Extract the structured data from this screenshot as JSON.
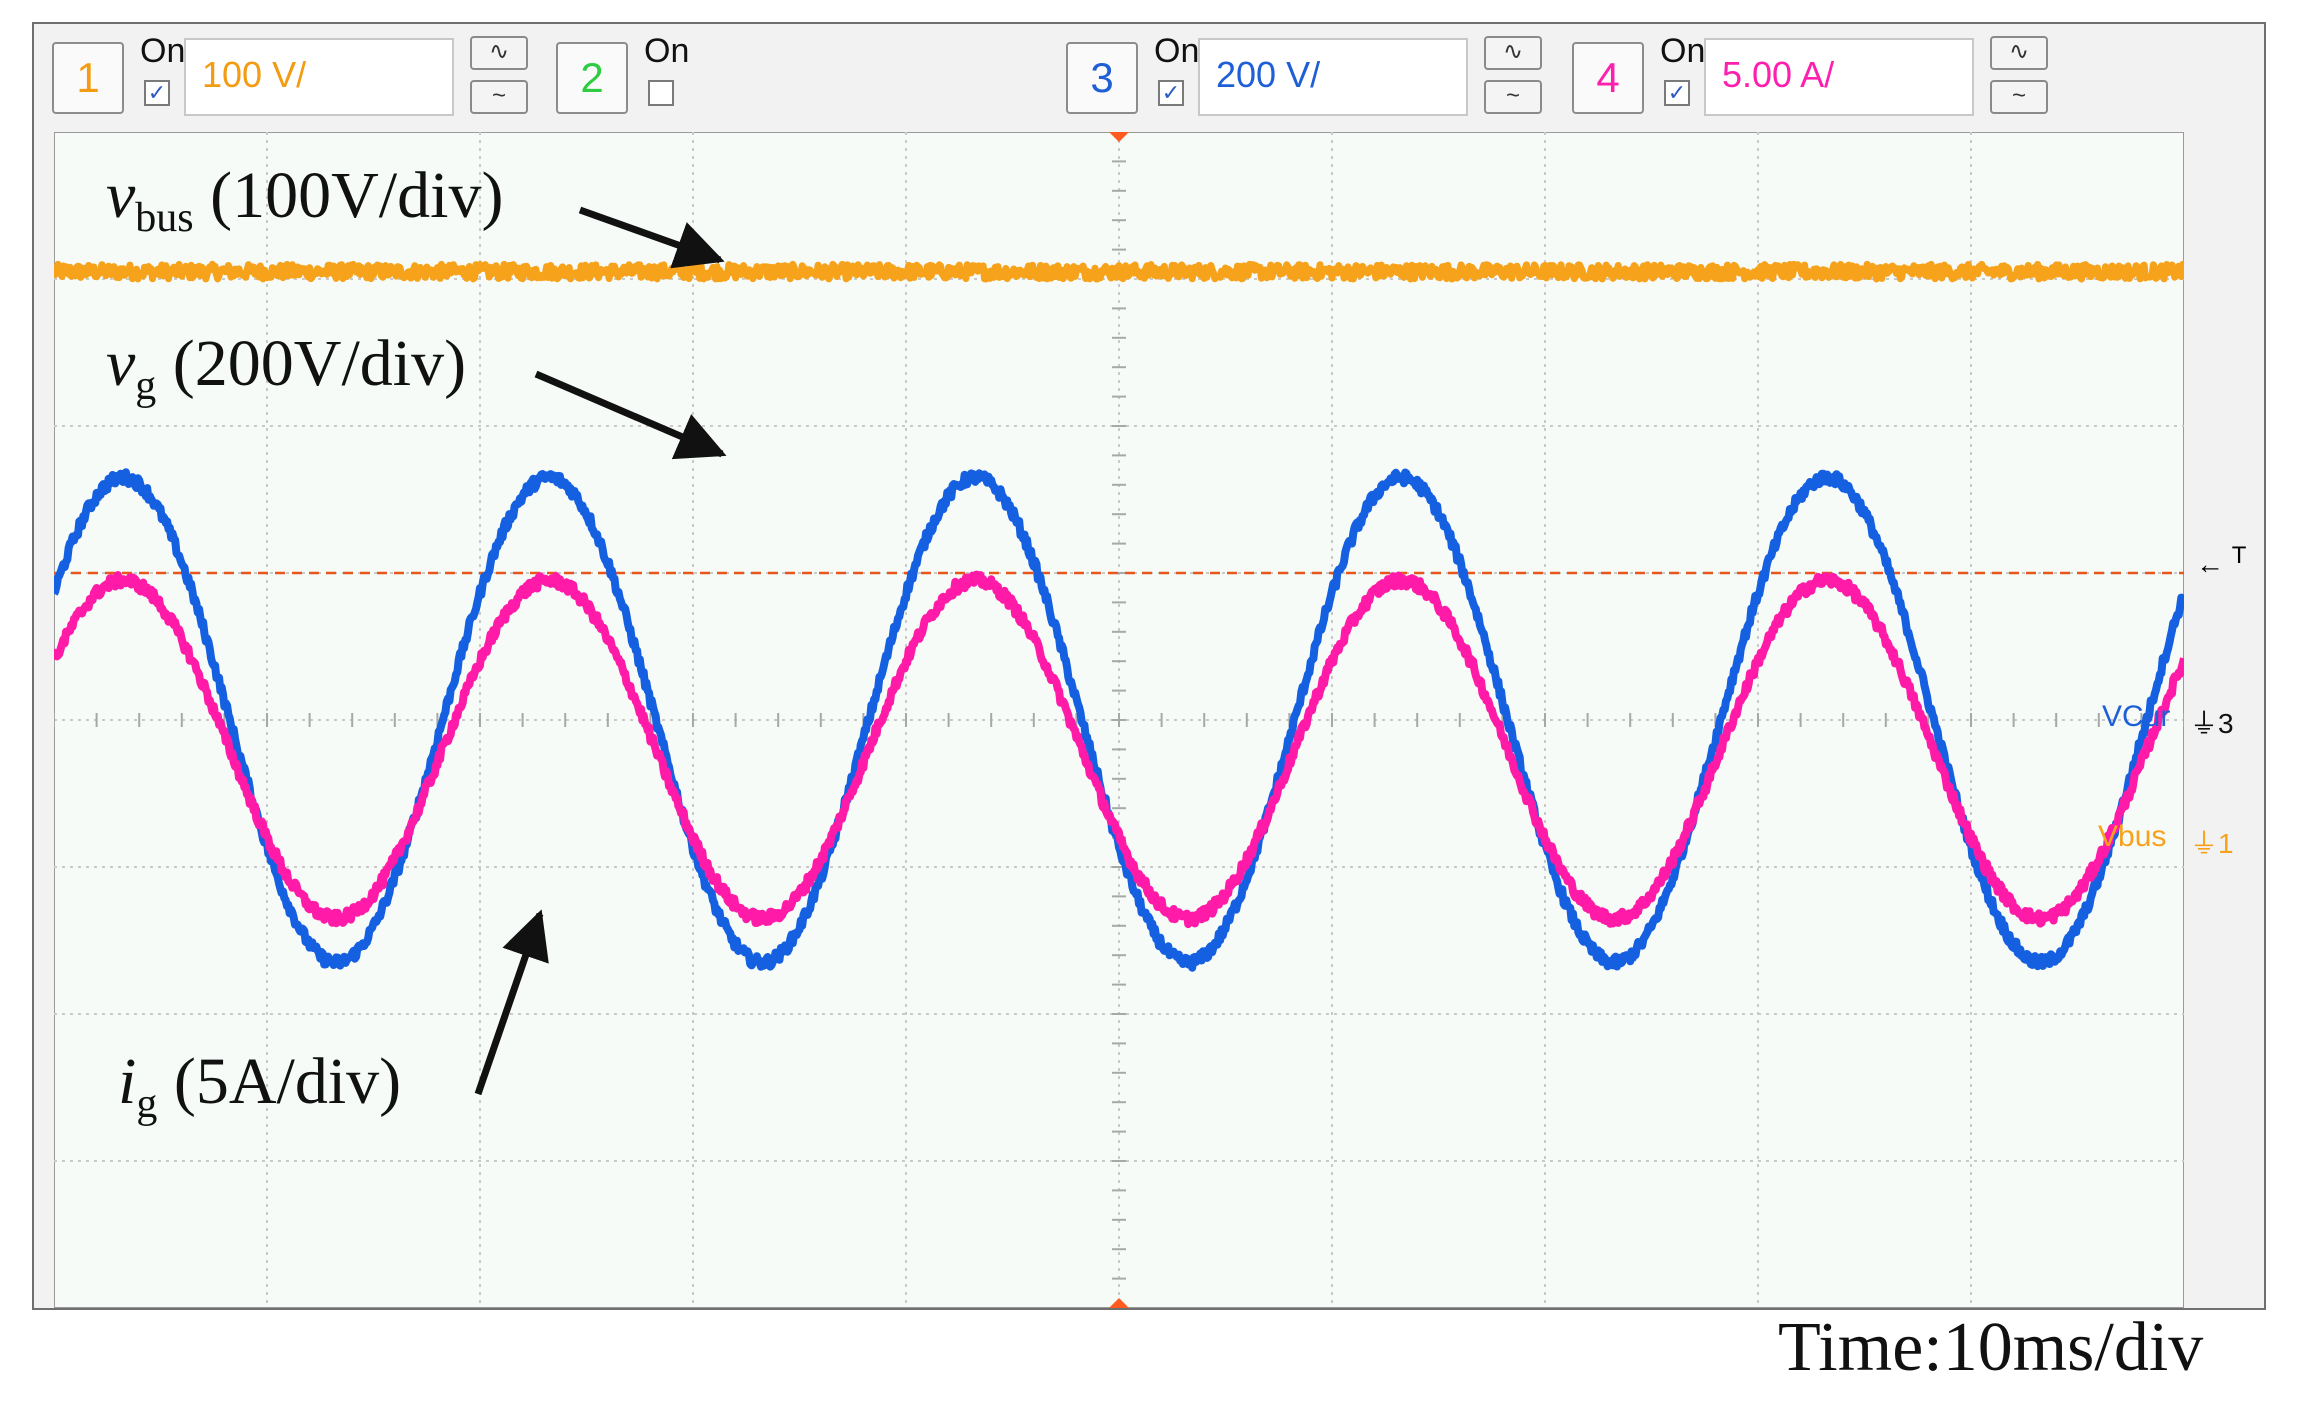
{
  "toolbar": {
    "channels": [
      {
        "number": "1",
        "on_label": "On",
        "checked": true,
        "scale": "100 V/",
        "color": "#f39c12"
      },
      {
        "number": "2",
        "on_label": "On",
        "checked": false,
        "scale": "",
        "color": "#2ecc40"
      },
      {
        "number": "3",
        "on_label": "On",
        "checked": true,
        "scale": "200 V/",
        "color": "#1f5fd6"
      },
      {
        "number": "4",
        "on_label": "On",
        "checked": true,
        "scale": "5.00 A/",
        "color": "#ff1fae"
      }
    ],
    "coupling_ac_icon": "ac-coupling-icon",
    "coupling_dc_icon": "dc-coupling-icon"
  },
  "labels": {
    "vbus_main": "v",
    "vbus_sub": "bus",
    "vbus_scale": "(100V/div)",
    "vg_main": "v",
    "vg_sub": "g",
    "vg_scale": "(200V/div)",
    "ig_main": "i",
    "ig_sub": "g",
    "ig_scale": "(5A/div)",
    "time": "Time:10ms/div"
  },
  "side_labels": {
    "trigger_marker": "T",
    "vcur": "VCur",
    "vcur_ref": "3",
    "vbus": "Vbus",
    "vbus_ref": "1"
  },
  "colors": {
    "vbus": "#f7a21b",
    "vg": "#1560e0",
    "ig": "#ff1aa8",
    "trigger_line": "#e8561b",
    "grid": "#c9c9c9",
    "plot_bg": "#f6fbf8"
  },
  "chart_data": {
    "type": "line",
    "title": "",
    "xlabel": "Time:10ms/div",
    "ylabel": "",
    "x_divisions": 10,
    "y_divisions": 8,
    "xlim": [
      0,
      100
    ],
    "x_unit": "ms",
    "grid": true,
    "series": [
      {
        "name": "vbus",
        "scale_per_div": "100V/div",
        "kind": "dc",
        "level_div": 3.05,
        "noise_div": 0.05
      },
      {
        "name": "vg",
        "scale_per_div": "200V/div",
        "kind": "sine",
        "offset_div": 0.0,
        "amplitude_div": 1.65,
        "frequency_hz": 50,
        "phase_deg": 0
      },
      {
        "name": "ig",
        "scale_per_div": "5A/div",
        "kind": "sine",
        "offset_div": -0.2,
        "amplitude_div": 1.15,
        "frequency_hz": 50,
        "phase_deg": 0
      }
    ],
    "trigger_level_div": 1.0
  }
}
